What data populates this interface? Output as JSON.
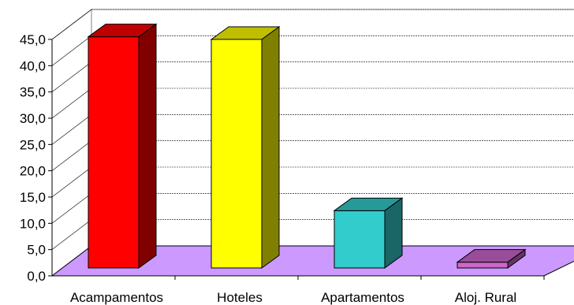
{
  "chart_data": {
    "type": "bar",
    "title": "",
    "xlabel": "",
    "ylabel": "",
    "categories": [
      "Acampamentos",
      "Hoteles",
      "Apartamentos",
      "Aloj. Rural"
    ],
    "values": [
      44.0,
      43.5,
      10.9,
      1.1
    ],
    "ylim": [
      0,
      45
    ],
    "yticks": [
      "0,0",
      "5,0",
      "10,0",
      "15,0",
      "20,0",
      "25,0",
      "30,0",
      "35,0",
      "40,0",
      "45,0"
    ],
    "grid": true,
    "legend": "none",
    "three_d": true,
    "colors": {
      "bars": [
        "#ff0000",
        "#ffff00",
        "#33cccc",
        "#cc66cc"
      ],
      "floor": "#cc99ff",
      "gridline": "#000000"
    }
  }
}
